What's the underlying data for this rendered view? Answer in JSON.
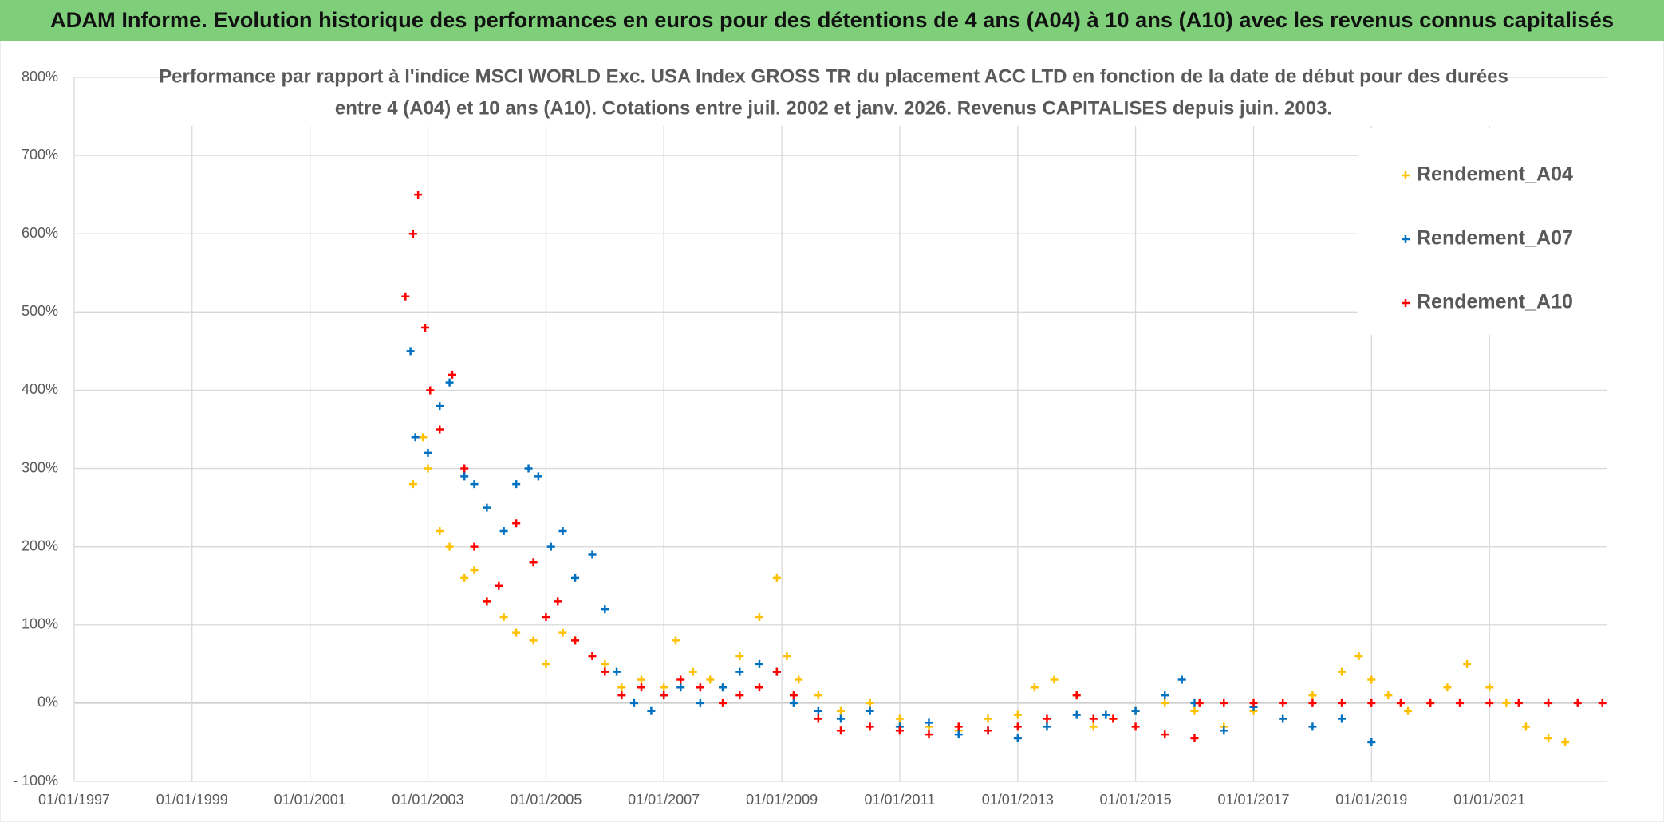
{
  "chart_data": {
    "type": "scatter",
    "title": "ADAM Informe. Evolution historique des performances en euros pour des détentions de 4 ans (A04) à 10 ans (A10) avec les revenus connus capitalisés",
    "subtitle": [
      "Performance par rapport à l'indice MSCI WORLD Exc. USA Index GROSS TR  du placement ACC LTD en fonction de la date de début pour des durées",
      "entre 4 (A04) et 10 ans (A10). Cotations entre juil. 2002 et janv. 2026. Revenus CAPITALISES depuis juin. 2003."
    ],
    "xlim": [
      "01/01/1997",
      "01/01/2023"
    ],
    "xticks": [
      "01/01/1997",
      "01/01/1999",
      "01/01/2001",
      "01/01/2003",
      "01/01/2005",
      "01/01/2007",
      "01/01/2009",
      "01/01/2011",
      "01/01/2013",
      "01/01/2015",
      "01/01/2017",
      "01/01/2019",
      "01/01/2021"
    ],
    "ylim": [
      -100,
      800
    ],
    "yticks": [
      {
        "value": -100,
        "label": "- 100%"
      },
      {
        "value": 0,
        "label": "0%"
      },
      {
        "value": 100,
        "label": "100%"
      },
      {
        "value": 200,
        "label": "200%"
      },
      {
        "value": 300,
        "label": "300%"
      },
      {
        "value": 400,
        "label": "400%"
      },
      {
        "value": 500,
        "label": "500%"
      },
      {
        "value": 600,
        "label": "600%"
      },
      {
        "value": 700,
        "label": "700%"
      },
      {
        "value": 800,
        "label": "800%"
      }
    ],
    "grid": true,
    "legend": "upper right",
    "series": [
      {
        "name": "Rendement_A04",
        "color": "#FFC000",
        "x": [
          "01/10/2002",
          "01/12/2002",
          "01/01/2003",
          "15/03/2003",
          "15/05/2003",
          "15/08/2003",
          "15/10/2003",
          "01/01/2004",
          "15/04/2004",
          "01/07/2004",
          "15/10/2004",
          "01/01/2005",
          "15/04/2005",
          "01/07/2005",
          "15/10/2005",
          "01/01/2006",
          "15/04/2006",
          "15/08/2006",
          "01/01/2007",
          "15/03/2007",
          "01/07/2007",
          "15/10/2007",
          "01/01/2008",
          "15/04/2008",
          "15/08/2008",
          "01/12/2008",
          "01/02/2009",
          "15/04/2009",
          "15/08/2009",
          "01/01/2010",
          "01/07/2010",
          "01/01/2011",
          "01/07/2011",
          "01/01/2012",
          "01/07/2012",
          "01/01/2013",
          "15/04/2013",
          "15/08/2013",
          "01/01/2014",
          "15/04/2014",
          "15/08/2014",
          "01/01/2015",
          "01/07/2015",
          "01/01/2016",
          "01/07/2016",
          "01/01/2017",
          "01/07/2017",
          "01/01/2018",
          "01/07/2018",
          "15/10/2018",
          "01/01/2019",
          "15/04/2019",
          "15/08/2019",
          "01/01/2020",
          "15/04/2020",
          "15/08/2020",
          "01/01/2021",
          "15/04/2021",
          "15/08/2021",
          "01/01/2022",
          "15/04/2022"
        ],
        "values": [
          280,
          340,
          300,
          220,
          200,
          160,
          170,
          130,
          110,
          90,
          80,
          50,
          90,
          80,
          60,
          50,
          20,
          30,
          20,
          80,
          40,
          30,
          20,
          60,
          110,
          160,
          60,
          30,
          10,
          -10,
          0,
          -20,
          -30,
          -35,
          -20,
          -15,
          20,
          30,
          10,
          -30,
          -20,
          -10,
          0,
          -10,
          -30,
          -10,
          -20,
          10,
          40,
          60,
          30,
          10,
          -10,
          0,
          20,
          50,
          20,
          0,
          -30,
          -45,
          -50
        ]
      },
      {
        "name": "Rendement_A07",
        "color": "#0070C0",
        "x": [
          "15/09/2002",
          "15/10/2002",
          "01/01/2003",
          "15/03/2003",
          "15/05/2003",
          "15/08/2003",
          "15/10/2003",
          "01/01/2004",
          "15/04/2004",
          "01/07/2004",
          "15/09/2004",
          "15/11/2004",
          "01/02/2005",
          "15/04/2005",
          "01/07/2005",
          "15/10/2005",
          "01/01/2006",
          "15/03/2006",
          "01/07/2006",
          "15/10/2006",
          "01/01/2007",
          "15/04/2007",
          "15/08/2007",
          "01/01/2008",
          "15/04/2008",
          "15/08/2008",
          "01/12/2008",
          "15/03/2009",
          "15/08/2009",
          "01/01/2010",
          "01/07/2010",
          "01/01/2011",
          "01/07/2011",
          "01/01/2012",
          "01/07/2012",
          "01/01/2013",
          "01/07/2013",
          "01/01/2014",
          "01/07/2014",
          "01/01/2015",
          "01/07/2015",
          "15/10/2015",
          "01/01/2016",
          "01/07/2016",
          "01/01/2017",
          "01/07/2017",
          "01/01/2018",
          "01/07/2018",
          "01/01/2019"
        ],
        "values": [
          450,
          340,
          320,
          380,
          410,
          290,
          280,
          250,
          220,
          280,
          300,
          290,
          200,
          220,
          160,
          190,
          120,
          40,
          0,
          -10,
          10,
          20,
          0,
          20,
          40,
          50,
          40,
          0,
          -10,
          -20,
          -10,
          -30,
          -25,
          -40,
          -35,
          -45,
          -30,
          -15,
          -15,
          -10,
          10,
          30,
          0,
          -35,
          -5,
          -20,
          -30,
          -20,
          -50
        ]
      },
      {
        "name": "Rendement_A10",
        "color": "#FF0000",
        "x": [
          "15/08/2002",
          "01/10/2002",
          "01/11/2002",
          "15/12/2002",
          "15/01/2003",
          "15/03/2003",
          "01/06/2003",
          "15/08/2003",
          "15/10/2003",
          "01/01/2004",
          "15/03/2004",
          "01/07/2004",
          "15/10/2004",
          "01/01/2005",
          "15/03/2005",
          "01/07/2005",
          "15/10/2005",
          "01/01/2006",
          "15/04/2006",
          "15/08/2006",
          "01/01/2007",
          "15/04/2007",
          "15/08/2007",
          "01/01/2008",
          "15/04/2008",
          "15/08/2008",
          "01/12/2008",
          "15/03/2009",
          "15/08/2009",
          "01/01/2010",
          "01/07/2010",
          "01/01/2011",
          "01/07/2011",
          "01/01/2012",
          "01/07/2012",
          "01/01/2013",
          "01/07/2013",
          "01/01/2014",
          "15/04/2014",
          "15/08/2014",
          "01/01/2015",
          "01/07/2015",
          "01/01/2016",
          "01/02/2016",
          "01/07/2016",
          "01/01/2017",
          "01/07/2017",
          "01/01/2018",
          "01/07/2018",
          "01/01/2019",
          "01/07/2019",
          "01/01/2020",
          "01/07/2020",
          "01/01/2021",
          "01/07/2021",
          "01/01/2022",
          "01/07/2022",
          "01/12/2022"
        ],
        "values": [
          520,
          600,
          650,
          480,
          400,
          350,
          420,
          300,
          200,
          130,
          150,
          230,
          180,
          110,
          130,
          80,
          60,
          40,
          10,
          20,
          10,
          30,
          20,
          0,
          10,
          20,
          40,
          10,
          -20,
          -35,
          -30,
          -35,
          -40,
          -30,
          -35,
          -30,
          -20,
          10,
          -20,
          -20,
          -30,
          -40,
          -45,
          0,
          0,
          0,
          0,
          0,
          0,
          0,
          0,
          0,
          0,
          0,
          0,
          0,
          0,
          0
        ]
      }
    ]
  }
}
